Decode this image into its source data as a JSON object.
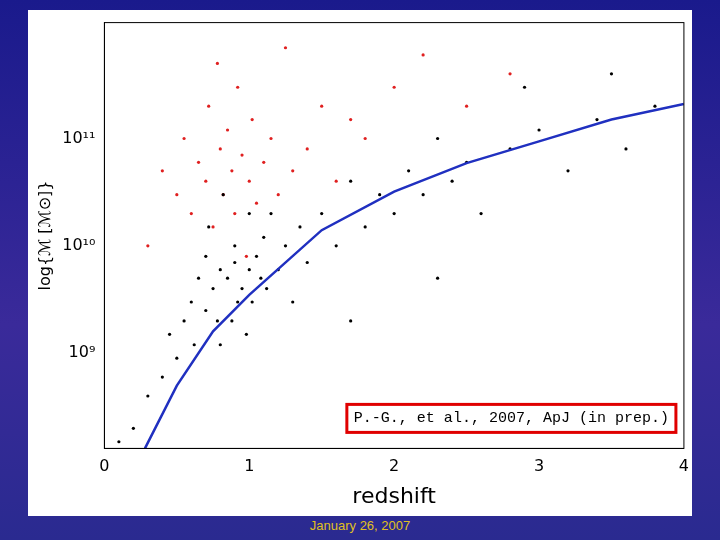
{
  "chart_data": {
    "type": "scatter",
    "x_label": "redshift",
    "y_label": "log{ℳ [ℳ⊙]}",
    "annotation": "P.-G., et al., 2007, ApJ (in prep.)",
    "footer": "January 26, 2007",
    "log": "y",
    "grid": false,
    "xlim": [
      0,
      4
    ],
    "xticks": [
      0,
      1,
      2,
      3,
      4
    ],
    "ylim": [
      130000000,
      1200000000000
    ],
    "yticks": [
      {
        "value": 1000000000,
        "label": "10⁹"
      },
      {
        "value": 10000000000,
        "label": "10¹⁰"
      },
      {
        "value": 100000000000,
        "label": "10¹¹"
      }
    ],
    "series": [
      {
        "color": "#000000",
        "marker": "circle",
        "x": [
          0.3,
          0.4,
          0.45,
          0.5,
          0.55,
          0.6,
          0.62,
          0.65,
          0.7,
          0.7,
          0.72,
          0.75,
          0.78,
          0.8,
          0.8,
          0.82,
          0.85,
          0.88,
          0.9,
          0.9,
          0.92,
          0.95,
          0.98,
          1.0,
          1.0,
          1.02,
          1.05,
          1.08,
          1.1,
          1.12,
          1.15,
          1.2,
          1.25,
          1.3,
          1.35,
          1.4,
          1.5,
          1.6,
          1.7,
          1.8,
          1.9,
          2.0,
          2.1,
          2.2,
          2.3,
          2.4,
          2.5,
          2.6,
          2.8,
          3.0,
          3.2,
          3.4,
          3.6,
          3.8,
          0.2,
          0.1,
          1.7,
          2.3,
          2.9,
          3.5
        ],
        "values": [
          400000000.0,
          600000000.0,
          1500000000.0,
          900000000.0,
          2000000000.0,
          3000000000.0,
          1200000000.0,
          5000000000.0,
          2500000000.0,
          8000000000.0,
          15000000000.0,
          4000000000.0,
          2000000000.0,
          6000000000.0,
          1200000000.0,
          30000000000.0,
          5000000000.0,
          2000000000.0,
          10000000000.0,
          7000000000.0,
          3000000000.0,
          4000000000.0,
          1500000000.0,
          6000000000.0,
          20000000000.0,
          3000000000.0,
          8000000000.0,
          5000000000.0,
          12000000000.0,
          4000000000.0,
          20000000000.0,
          6000000000.0,
          10000000000.0,
          3000000000.0,
          15000000000.0,
          7000000000.0,
          20000000000.0,
          10000000000.0,
          40000000000.0,
          15000000000.0,
          30000000000.0,
          20000000000.0,
          50000000000.0,
          30000000000.0,
          100000000000.0,
          40000000000.0,
          60000000000.0,
          20000000000.0,
          80000000000.0,
          120000000000.0,
          50000000000.0,
          150000000000.0,
          80000000000.0,
          200000000000.0,
          200000000.0,
          150000000.0,
          2000000000.0,
          5000000000.0,
          300000000000.0,
          400000000000.0
        ]
      },
      {
        "color": "#e02020",
        "marker": "circle",
        "x": [
          0.5,
          0.55,
          0.6,
          0.65,
          0.7,
          0.72,
          0.75,
          0.8,
          0.82,
          0.85,
          0.88,
          0.9,
          0.92,
          0.95,
          1.0,
          1.02,
          1.05,
          1.1,
          1.15,
          1.2,
          1.3,
          1.4,
          1.5,
          1.6,
          1.8,
          2.0,
          2.2,
          2.5,
          0.3,
          0.4,
          0.78,
          0.98,
          1.25,
          1.7,
          2.8
        ],
        "values": [
          30000000000.0,
          100000000000.0,
          20000000000.0,
          60000000000.0,
          40000000000.0,
          200000000000.0,
          15000000000.0,
          80000000000.0,
          30000000000.0,
          120000000000.0,
          50000000000.0,
          20000000000.0,
          300000000000.0,
          70000000000.0,
          40000000000.0,
          150000000000.0,
          25000000000.0,
          60000000000.0,
          100000000000.0,
          30000000000.0,
          50000000000.0,
          80000000000.0,
          200000000000.0,
          40000000000.0,
          100000000000.0,
          300000000000.0,
          600000000000.0,
          200000000000.0,
          10000000000.0,
          50000000000.0,
          500000000000.0,
          8000000000.0,
          700000000000.0,
          150000000000.0,
          400000000000.0
        ]
      },
      {
        "color": "#2030c0",
        "type": "line",
        "line_style": "solid",
        "x": [
          0.28,
          0.5,
          0.75,
          1,
          1.5,
          2,
          2.5,
          3,
          3.5,
          4
        ],
        "values": [
          130000000.0,
          500000000.0,
          1600000000.0,
          3500000000.0,
          14000000000.0,
          32000000000.0,
          59000000000.0,
          94000000000.0,
          150000000000.0,
          210000000000.0
        ]
      }
    ]
  }
}
